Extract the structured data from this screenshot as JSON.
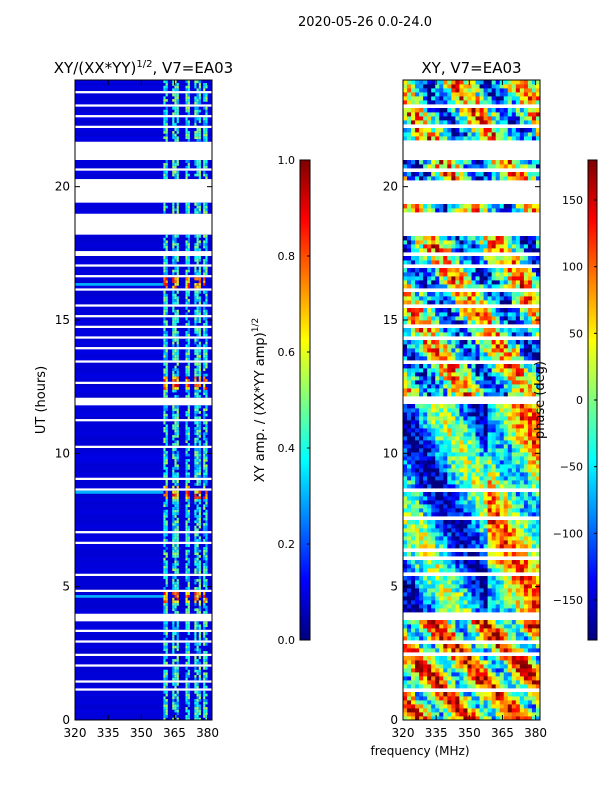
{
  "figure": {
    "suptitle": "2020-05-26 0.0-24.0",
    "shared_xlabel": "frequency (MHz)"
  },
  "colors": {
    "jet_stops": [
      "#00007f",
      "#0000ff",
      "#007fff",
      "#00ffff",
      "#7fff7f",
      "#ffff00",
      "#ff7f00",
      "#ff0000",
      "#7f0000"
    ],
    "gap_color": "#ffffff",
    "frame_color": "#000000"
  },
  "chart_data": [
    {
      "type": "heatmap",
      "title": "XY/(XX*YY)^1/2, V7=EA03",
      "title_main": "XY/(XX*YY)",
      "title_sup": "1/2",
      "title_tail": ", V7=EA03",
      "xlabel": "",
      "ylabel": "UT (hours)",
      "xlim": [
        320,
        382
      ],
      "ylim": [
        0,
        24
      ],
      "xticks": [
        320,
        335,
        350,
        365,
        380
      ],
      "yticks": [
        0,
        5,
        10,
        15,
        20
      ],
      "colorbar": {
        "label_main": "XY amp. / (XX*YY amp)",
        "label_sup": "1/2",
        "range": [
          0.0,
          1.0
        ],
        "ticks": [
          "0.0",
          "0.2",
          "0.4",
          "0.6",
          "0.8",
          "1.0"
        ],
        "tick_values": [
          0.0,
          0.2,
          0.4,
          0.6,
          0.8,
          1.0
        ]
      },
      "rfi_channels_mhz": [
        360,
        361,
        364,
        365,
        366,
        370,
        371,
        374,
        375,
        376,
        378,
        379
      ],
      "hot_rows_ut": [
        4.6,
        8.5,
        12.6,
        16.3
      ]
    },
    {
      "type": "heatmap",
      "title": "XY, V7=EA03",
      "xlabel": "",
      "ylabel": "",
      "xlim": [
        320,
        382
      ],
      "ylim": [
        0,
        24
      ],
      "xticks": [
        320,
        335,
        350,
        365,
        380
      ],
      "yticks": [
        0,
        5,
        10,
        15,
        20
      ],
      "colorbar": {
        "label_main": "phase (deg)",
        "range": [
          -180,
          180
        ],
        "ticks": [
          "−150",
          "−100",
          "−50",
          "0",
          "50",
          "100",
          "150"
        ],
        "tick_values": [
          -150,
          -100,
          -50,
          0,
          50,
          100,
          150
        ]
      }
    }
  ],
  "gaps_ut": [
    [
      21.0,
      21.75
    ],
    [
      19.4,
      20.3
    ],
    [
      18.2,
      19.0
    ],
    [
      17.4,
      17.55
    ],
    [
      11.8,
      12.1
    ],
    [
      5.35,
      5.5
    ],
    [
      3.75,
      4.05
    ],
    [
      1.45,
      1.55
    ],
    [
      23.5,
      23.6
    ],
    [
      23.0,
      23.1
    ],
    [
      22.6,
      22.7
    ],
    [
      22.2,
      22.3
    ],
    [
      20.6,
      20.68
    ],
    [
      17.0,
      17.08
    ],
    [
      16.6,
      16.68
    ],
    [
      15.5,
      15.58
    ],
    [
      14.7,
      14.78
    ],
    [
      13.9,
      13.98
    ],
    [
      13.4,
      13.48
    ],
    [
      11.2,
      11.28
    ],
    [
      9.85,
      9.92
    ],
    [
      9.0,
      9.07
    ],
    [
      7.95,
      8.02
    ],
    [
      7.0,
      7.07
    ],
    [
      6.05,
      6.12
    ],
    [
      2.9,
      2.97
    ],
    [
      2.05,
      2.12
    ],
    [
      3.3,
      3.37
    ],
    [
      10.2,
      10.27
    ],
    [
      8.6,
      8.66
    ],
    [
      7.55,
      7.61
    ],
    [
      6.6,
      6.66
    ],
    [
      4.8,
      4.86
    ],
    [
      22.9,
      22.95
    ],
    [
      21.9,
      21.95
    ],
    [
      18.7,
      18.75
    ],
    [
      16.1,
      16.16
    ],
    [
      15.1,
      15.15
    ],
    [
      14.3,
      14.35
    ],
    [
      12.6,
      12.65
    ],
    [
      11.55,
      11.6
    ],
    [
      10.75,
      10.8
    ],
    [
      9.45,
      9.5
    ],
    [
      8.25,
      8.3
    ],
    [
      6.35,
      6.4
    ],
    [
      4.3,
      4.35
    ],
    [
      2.45,
      2.5
    ],
    [
      1.1,
      1.15
    ]
  ]
}
